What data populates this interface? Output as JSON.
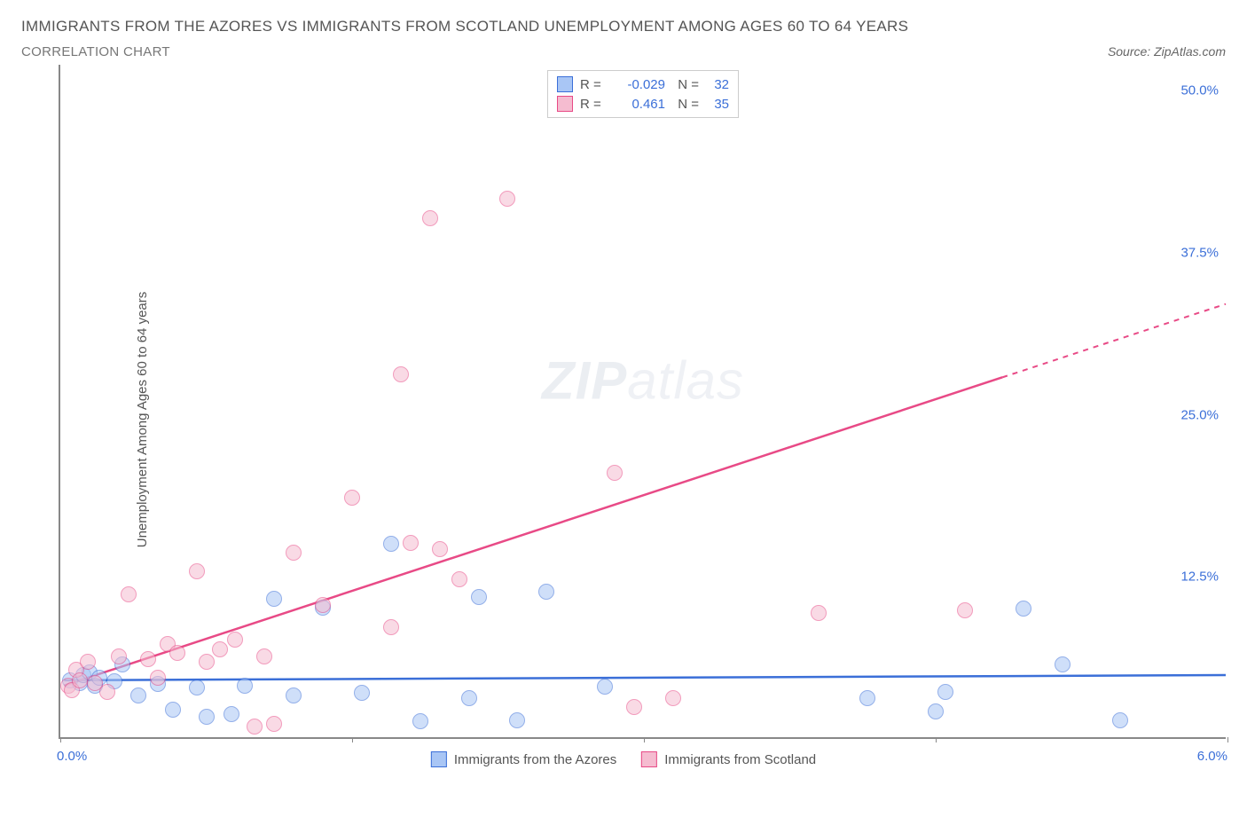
{
  "title": "IMMIGRANTS FROM THE AZORES VS IMMIGRANTS FROM SCOTLAND UNEMPLOYMENT AMONG AGES 60 TO 64 YEARS",
  "subtitle": "CORRELATION CHART",
  "source": "Source: ZipAtlas.com",
  "watermark_a": "ZIP",
  "watermark_b": "atlas",
  "ylabel": "Unemployment Among Ages 60 to 64 years",
  "chart": {
    "type": "scatter",
    "xlim": [
      0.0,
      6.0
    ],
    "ylim": [
      0.0,
      52.0
    ],
    "x_ticks": [
      0.0,
      1.5,
      3.0,
      4.5,
      6.0
    ],
    "x_tick_labels": [
      "0.0%",
      "",
      "",
      "",
      "6.0%"
    ],
    "y_ticks": [
      12.5,
      25.0,
      37.5,
      50.0
    ],
    "y_tick_labels": [
      "12.5%",
      "25.0%",
      "37.5%",
      "50.0%"
    ],
    "background_color": "#ffffff",
    "axis_color": "#888888",
    "tick_label_color": "#3b6fd8",
    "marker_radius": 9,
    "marker_opacity": 0.55,
    "series": [
      {
        "name": "Immigrants from the Azores",
        "key": "azores",
        "fill": "#a9c6f5",
        "stroke": "#3b6fd8",
        "R": "-0.029",
        "N": "32",
        "trend": {
          "x1": 0.02,
          "y1": 4.4,
          "x2": 6.0,
          "y2": 4.8,
          "solid_until_x": 6.0
        },
        "points": [
          [
            0.05,
            4.4
          ],
          [
            0.1,
            4.2
          ],
          [
            0.12,
            4.8
          ],
          [
            0.15,
            5.0
          ],
          [
            0.18,
            4.0
          ],
          [
            0.2,
            4.6
          ],
          [
            0.28,
            4.3
          ],
          [
            0.32,
            5.6
          ],
          [
            0.4,
            3.2
          ],
          [
            0.5,
            4.1
          ],
          [
            0.58,
            2.1
          ],
          [
            0.7,
            3.8
          ],
          [
            0.75,
            1.6
          ],
          [
            0.88,
            1.8
          ],
          [
            0.95,
            4.0
          ],
          [
            1.1,
            10.7
          ],
          [
            1.2,
            3.2
          ],
          [
            1.35,
            10.0
          ],
          [
            1.55,
            3.4
          ],
          [
            1.7,
            14.9
          ],
          [
            1.85,
            1.2
          ],
          [
            2.1,
            3.0
          ],
          [
            2.15,
            10.8
          ],
          [
            2.35,
            1.3
          ],
          [
            2.5,
            11.2
          ],
          [
            2.8,
            3.9
          ],
          [
            4.15,
            3.0
          ],
          [
            4.5,
            2.0
          ],
          [
            4.55,
            3.5
          ],
          [
            5.15,
            5.6
          ],
          [
            4.95,
            9.9
          ],
          [
            5.45,
            1.3
          ]
        ]
      },
      {
        "name": "Immigrants from Scotland",
        "key": "scotland",
        "fill": "#f5bcd0",
        "stroke": "#e84a86",
        "R": "0.461",
        "N": "35",
        "trend": {
          "x1": 0.02,
          "y1": 4.0,
          "x2": 6.0,
          "y2": 33.5,
          "solid_until_x": 4.85
        },
        "points": [
          [
            0.04,
            4.0
          ],
          [
            0.06,
            3.6
          ],
          [
            0.08,
            5.2
          ],
          [
            0.1,
            4.4
          ],
          [
            0.14,
            5.8
          ],
          [
            0.18,
            4.2
          ],
          [
            0.24,
            3.5
          ],
          [
            0.3,
            6.2
          ],
          [
            0.35,
            11.0
          ],
          [
            0.45,
            6.0
          ],
          [
            0.55,
            7.2
          ],
          [
            0.6,
            6.5
          ],
          [
            0.7,
            12.8
          ],
          [
            0.75,
            5.8
          ],
          [
            0.82,
            6.8
          ],
          [
            0.9,
            7.5
          ],
          [
            1.0,
            0.8
          ],
          [
            1.05,
            6.2
          ],
          [
            1.1,
            1.0
          ],
          [
            1.2,
            14.2
          ],
          [
            1.35,
            10.2
          ],
          [
            1.5,
            18.5
          ],
          [
            1.7,
            8.5
          ],
          [
            1.75,
            28.0
          ],
          [
            1.9,
            40.0
          ],
          [
            1.8,
            15.0
          ],
          [
            1.95,
            14.5
          ],
          [
            2.05,
            12.2
          ],
          [
            2.3,
            41.5
          ],
          [
            2.85,
            20.4
          ],
          [
            2.95,
            2.3
          ],
          [
            3.15,
            3.0
          ],
          [
            3.9,
            9.6
          ],
          [
            4.65,
            9.8
          ],
          [
            0.5,
            4.6
          ]
        ]
      }
    ]
  },
  "legend_top": {
    "r_label": "R =",
    "n_label": "N ="
  },
  "legend_bottom": [
    {
      "swatch_fill": "#a9c6f5",
      "swatch_stroke": "#3b6fd8",
      "label": "Immigrants from the Azores"
    },
    {
      "swatch_fill": "#f5bcd0",
      "swatch_stroke": "#e84a86",
      "label": "Immigrants from Scotland"
    }
  ]
}
